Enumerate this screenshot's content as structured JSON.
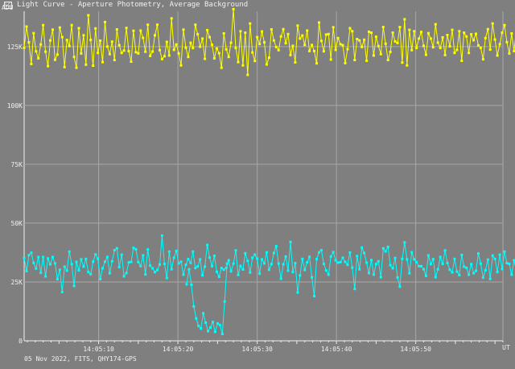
{
  "window": {
    "icon": "light-curve-app-icon",
    "title": "Light Curve - Aperture Photometry, Average Background"
  },
  "footer_text": "05 Nov 2022, FITS, QHY174-GPS",
  "colors": {
    "background": "#7f7f7f",
    "grid": "#a8a8a8",
    "text": "#f0f0f0",
    "series_target": "#ffff00",
    "series_comparison": "#00ffff"
  },
  "chart_data": {
    "type": "line",
    "ylabel": "ADU",
    "xlabel": "UT",
    "ylim": [
      0,
      140000
    ],
    "xlim_seconds_after_14_05_00": [
      0.6,
      61.0
    ],
    "yticks": [
      0,
      25000,
      50000,
      75000,
      100000,
      125000
    ],
    "ytick_labels": [
      "0",
      "25K",
      "50K",
      "75K",
      "100K",
      "125K"
    ],
    "xticks": [
      "14:05:10",
      "14:05:20",
      "14:05:30",
      "14:05:40",
      "14:05:50"
    ],
    "grid": true,
    "legend": "none",
    "sample_interval_s": 0.3,
    "series": [
      {
        "color": "#ffff00",
        "values": [
          124500,
          133500,
          126800,
          117600,
          130700,
          123000,
          120000,
          125900,
          134100,
          122800,
          116700,
          127600,
          132200,
          119400,
          121600,
          133100,
          129000,
          116300,
          127800,
          125200,
          134100,
          120600,
          116000,
          132800,
          122100,
          129800,
          117300,
          138300,
          127800,
          116900,
          132700,
          122300,
          127500,
          118400,
          135400,
          125000,
          121800,
          127100,
          119300,
          132300,
          125600,
          122300,
          123300,
          132900,
          123100,
          118600,
          131700,
          122600,
          122100,
          131800,
          128700,
          122800,
          134300,
          121000,
          122900,
          129800,
          134300,
          123500,
          119700,
          120900,
          127000,
          121200,
          137000,
          123600,
          125900,
          122100,
          117000,
          132200,
          124500,
          120600,
          126600,
          124400,
          134300,
          130200,
          124900,
          128400,
          119800,
          132000,
          129000,
          125800,
          120000,
          124200,
          122200,
          116000,
          130600,
          123800,
          120600,
          126600,
          140900,
          124400,
          118400,
          131500,
          117000,
          130900,
          113000,
          134800,
          122500,
          118900,
          129000,
          126100,
          131400,
          126800,
          117400,
          120300,
          132300,
          127600,
          124800,
          123500,
          129300,
          132400,
          126400,
          130300,
          121400,
          125300,
          118300,
          133900,
          128400,
          129700,
          125700,
          131800,
          123100,
          125700,
          123100,
          117900,
          135200,
          127400,
          123000,
          130100,
          130300,
          119500,
          133200,
          123600,
          128600,
          126000,
          125600,
          118000,
          123900,
          132800,
          131500,
          119300,
          128200,
          127600,
          124800,
          127900,
          119000,
          131300,
          130900,
          121200,
          129200,
          125200,
          121800,
          133300,
          126200,
          119300,
          122700,
          130900,
          127200,
          126500,
          133300,
          118200,
          136600,
          117000,
          132100,
          123500,
          131500,
          124400,
          128400,
          131200,
          125300,
          121500,
          130700,
          128400,
          124700,
          134500,
          126700,
          124400,
          128900,
          121400,
          129900,
          125100,
          132100,
          122300,
          123600,
          131500,
          119000,
          130900,
          129300,
          122300,
          130200,
          127700,
          130400,
          125500,
          124500,
          119600,
          128600,
          132400,
          123700,
          134800,
          128000,
          121200,
          126000,
          130900,
          134100,
          126900,
          122100,
          130600,
          123100,
          132300,
          120300,
          125400,
          132900,
          117400,
          131900,
          130900,
          128000,
          122200,
          134400,
          123800,
          129100,
          122700,
          133400,
          126400,
          127700,
          119600,
          120900,
          120400,
          130500,
          128600,
          132700,
          121800,
          133100,
          124600,
          116700,
          137900,
          127100,
          123400,
          122500,
          130300,
          119500,
          143500,
          116500,
          127500,
          121000,
          137700,
          120500,
          117100,
          125100,
          131600,
          127500,
          123500,
          128600,
          141400,
          118000,
          124800,
          122400,
          129100,
          126900,
          139600,
          124700,
          123500,
          131700,
          128900,
          125900,
          120400,
          124000,
          128000,
          132200,
          131900,
          120900,
          114600,
          120000,
          127400,
          132000,
          119600,
          125300,
          135000,
          123400,
          123800,
          137400,
          125900,
          130000,
          121900,
          122100,
          121100,
          123100,
          138900,
          118500,
          119400,
          125100,
          127700,
          120900,
          132100,
          136600
        ]
      },
      {
        "color": "#00ffff",
        "values": [
          35200,
          29600,
          36400,
          37400,
          33100,
          30700,
          35600,
          28900,
          35600,
          27400,
          35000,
          32500,
          35600,
          32900,
          26200,
          30200,
          20700,
          31500,
          29800,
          37900,
          32600,
          23300,
          33500,
          29900,
          34600,
          31500,
          34800,
          29200,
          28300,
          33600,
          36700,
          34900,
          26200,
          30800,
          33600,
          35600,
          28700,
          33800,
          38500,
          39300,
          31300,
          36600,
          27400,
          28800,
          33300,
          33500,
          39500,
          38900,
          33400,
          31700,
          36300,
          28200,
          38800,
          31900,
          30800,
          29200,
          30100,
          32400,
          44700,
          32700,
          26700,
          37900,
          30400,
          35300,
          38200,
          32900,
          33600,
          28100,
          32300,
          34700,
          33100,
          37900,
          30900,
          31600,
          34600,
          27800,
          31500,
          40700,
          35400,
          31700,
          36100,
          29300,
          27200,
          30900,
          30200,
          31000,
          34200,
          29500,
          32800,
          38400,
          28000,
          31800,
          30300,
          37200,
          34000,
          29000,
          35300,
          36600,
          34900,
          28500,
          34600,
          32900,
          37600,
          30200,
          32600,
          37300,
          40200,
          32800,
          26400,
          32500,
          35800,
          29800,
          42000,
          29200,
          33000,
          20500,
          27800,
          34800,
          30100,
          33300,
          35700,
          26900,
          19000,
          34700,
          37600,
          38500,
          32700,
          29900,
          28100,
          35800,
          37700,
          34200,
          33200,
          33400,
          35300,
          33500,
          32300,
          37500,
          31100,
          22000,
          36000,
          30400,
          39600,
          37300,
          33200,
          28800,
          34300,
          28100,
          32600,
          33800,
          27000,
          39300,
          38000,
          39900,
          32100,
          30800,
          35200,
          26900,
          23000,
          34800,
          41800,
          34600,
          28700,
          37600,
          34600,
          33400,
          31700,
          31700,
          30400,
          27600,
          36300,
          32600,
          34700,
          27000,
          30400,
          35600,
          32700,
          38400,
          33000,
          30200,
          29100,
          34800,
          29400,
          27900,
          36500,
          31500,
          31000,
          28100,
          32600,
          28700,
          29700,
          37100,
          32800,
          26800,
          30000,
          34500,
          26300,
          36200,
          34800,
          29200,
          36600,
          30500,
          37900,
          33000,
          32700,
          28100,
          34200,
          29500,
          32100,
          36200,
          29200,
          30900,
          37600,
          27500,
          31100,
          33900,
          34400,
          35700,
          35400,
          31400,
          30300,
          35700,
          32700,
          28100,
          34400,
          38400,
          30500,
          37300,
          28700,
          37100,
          31800,
          29900,
          37300,
          36400,
          33900,
          28800,
          31300,
          34800,
          33100,
          29700,
          39300,
          33400,
          31500,
          30900,
          32800,
          34900,
          29800,
          27700,
          36100,
          31300,
          36700,
          28000,
          29600,
          34700,
          32800,
          33800,
          37800,
          29800,
          33400,
          30300,
          29600,
          33200,
          31200,
          30700,
          31900,
          33100,
          31900,
          36800,
          32800,
          27300,
          29600,
          34300,
          30700,
          28900,
          35500,
          31900,
          26200,
          28100,
          34900,
          29300,
          31200,
          35300,
          33800,
          30300,
          35200,
          31100,
          37300,
          33000,
          27500,
          29300,
          33000,
          30300,
          29800,
          33800,
          37000,
          29400,
          27200,
          37800,
          31700,
          30600,
          27200,
          30100,
          28400,
          30400
        ]
      },
      {
        "color": "#00ffff",
        "start_seconds_after_14_05_00": 21.1,
        "values": [
          24000,
          30400,
          23800,
          14600,
          9500,
          6300,
          5200,
          11700,
          7700,
          4100,
          5600,
          8000,
          3800,
          7400,
          6700,
          2900,
          16700,
          32800
        ]
      }
    ]
  }
}
